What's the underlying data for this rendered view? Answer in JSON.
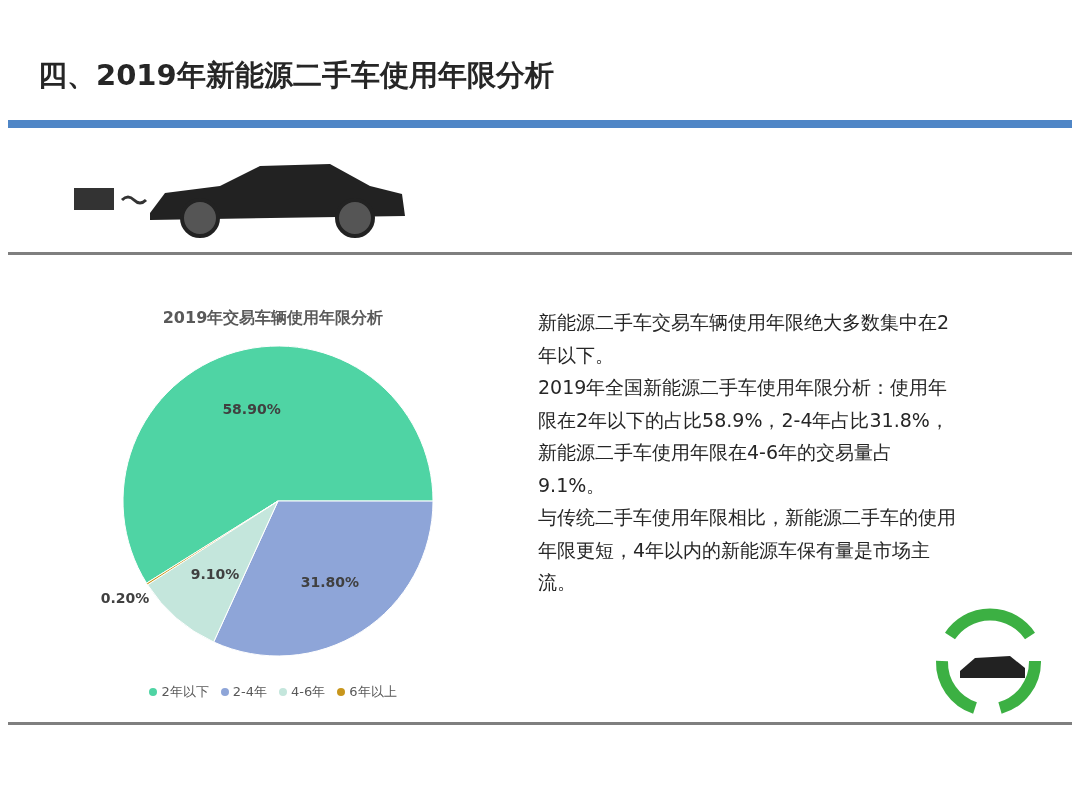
{
  "chart_data": {
    "type": "pie",
    "title": "2019年交易车辆使用年限分析",
    "subtitle": "四、2019年新能源二手车使用年限分析",
    "categories": [
      "2年以下",
      "2-4年",
      "4-6年",
      "6年以上"
    ],
    "values": [
      58.9,
      31.8,
      9.1,
      0.2
    ],
    "value_labels": [
      "58.90%",
      "31.80%",
      "9.10%",
      "0.20%"
    ],
    "colors": [
      "#4fd4a4",
      "#8ea5d8",
      "#c4e6dc",
      "#c8961c"
    ],
    "legend": "bottom",
    "annotations": [
      "新能源二手车交易车辆使用年限绝大多数集中在2年以下。",
      "2019年全国新能源二手车使用年限分析：使用年限在2年以下的占比58.9%，2-4年占比31.8%，新能源二手车使用年限在4-6年的交易量占9.1%。",
      "与传统二手车使用年限相比，新能源二手车的使用年限更短，4年以内的新能源车保有量是市场主流。"
    ]
  }
}
